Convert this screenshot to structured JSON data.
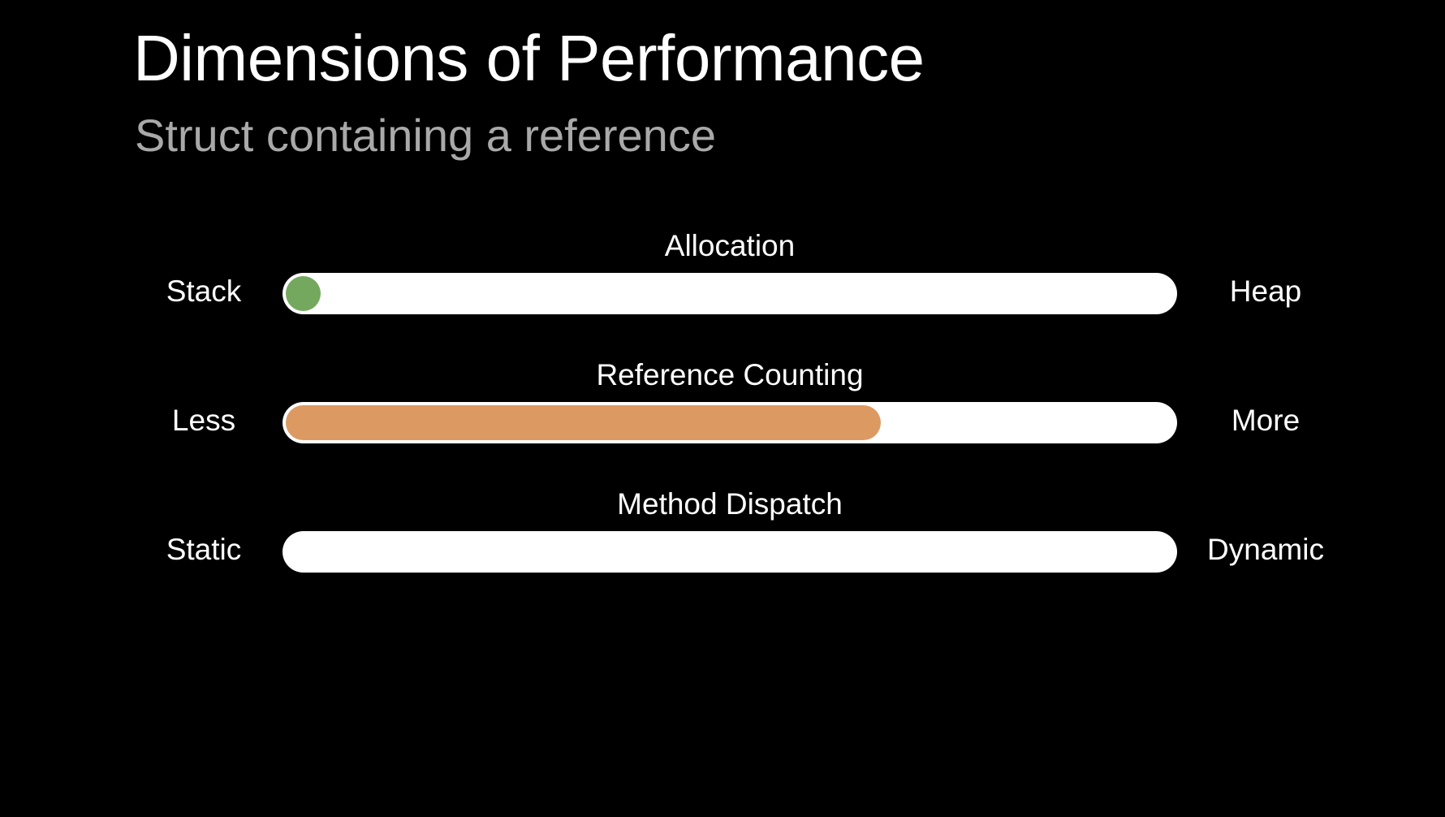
{
  "slide": {
    "title": "Dimensions of Performance",
    "subtitle": "Struct containing a reference"
  },
  "metrics": [
    {
      "label": "Allocation",
      "left_label": "Stack",
      "right_label": "Heap",
      "value": 0.0,
      "color": "#74a85f"
    },
    {
      "label": "Reference Counting",
      "left_label": "Less",
      "right_label": "More",
      "value": 0.67,
      "color": "#dc9a62"
    },
    {
      "label": "Method Dispatch",
      "left_label": "Static",
      "right_label": "Dynamic",
      "value": null,
      "color": "#ffffff"
    }
  ]
}
